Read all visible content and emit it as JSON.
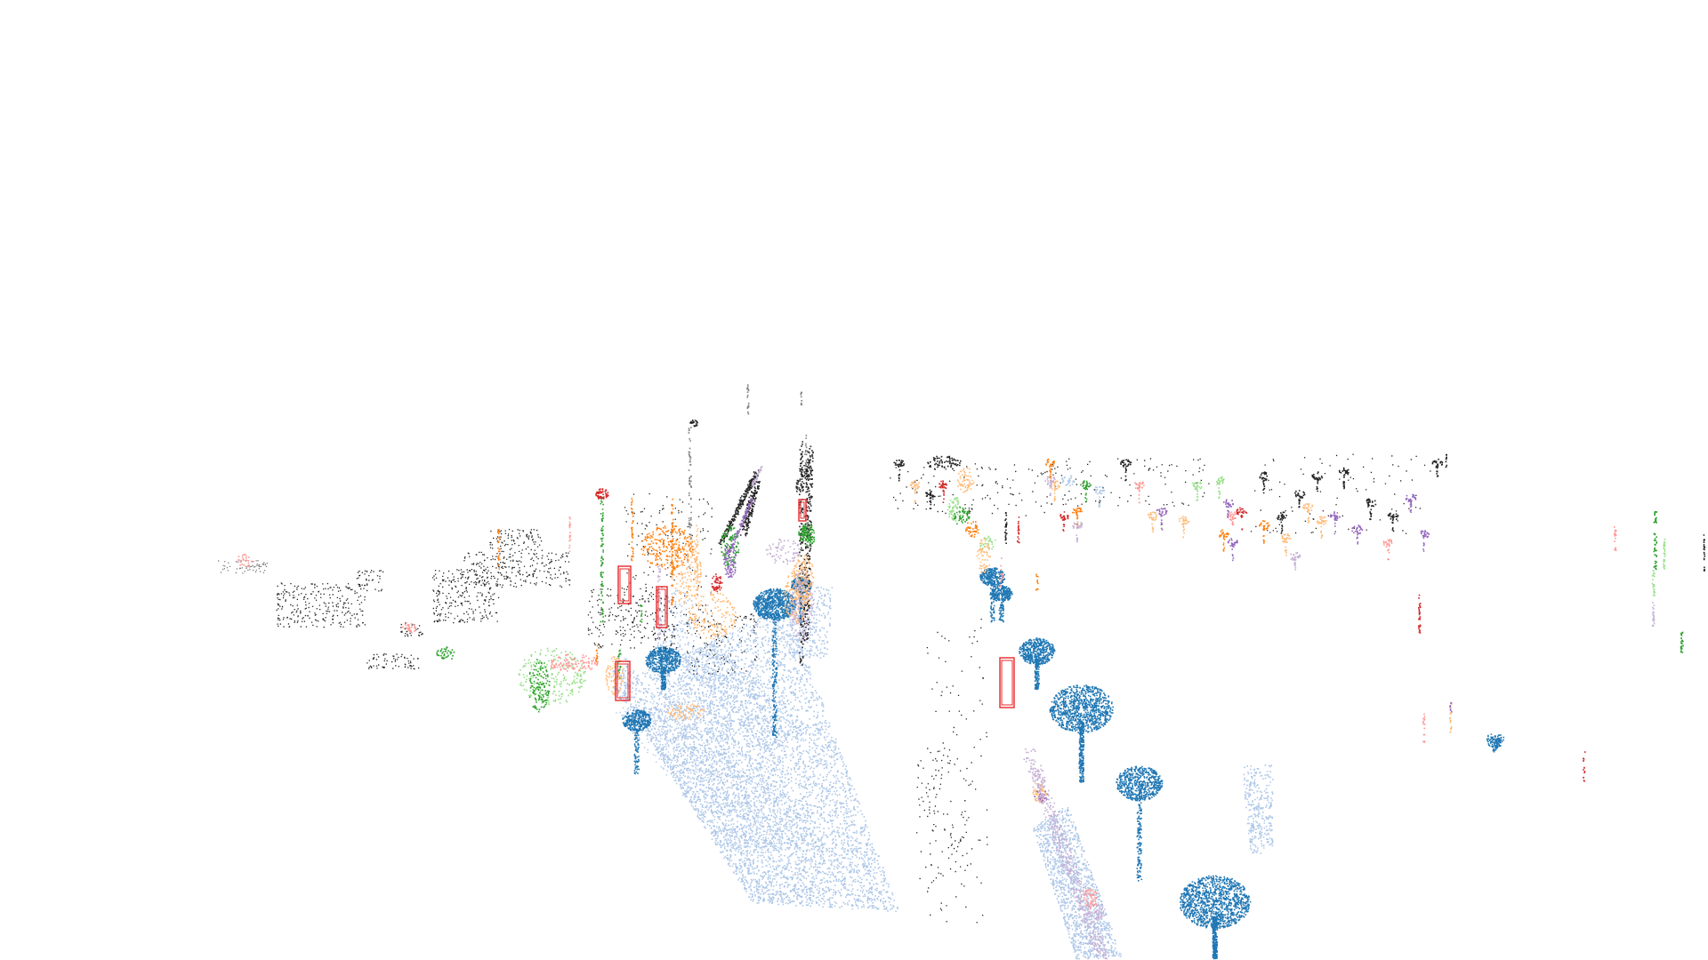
{
  "scene": {
    "kind": "lidar-point-cloud-viewer",
    "background": "#ffffff",
    "point_palette": {
      "trees": "#1f77b4",
      "ground": "#aec7e8",
      "orange_objects": "#ff7f0e",
      "light_orange": "#ffbb78",
      "green_objects": "#2ca02c",
      "light_green": "#98df8a",
      "red_objects": "#d62728",
      "pink": "#ff9896",
      "purple": "#9467bd",
      "light_purple": "#c5b0d5",
      "gray": "#7f7f7f",
      "black": "#222222"
    },
    "bounding_box_color": "#e8282b",
    "bounding_box_count": 5
  }
}
